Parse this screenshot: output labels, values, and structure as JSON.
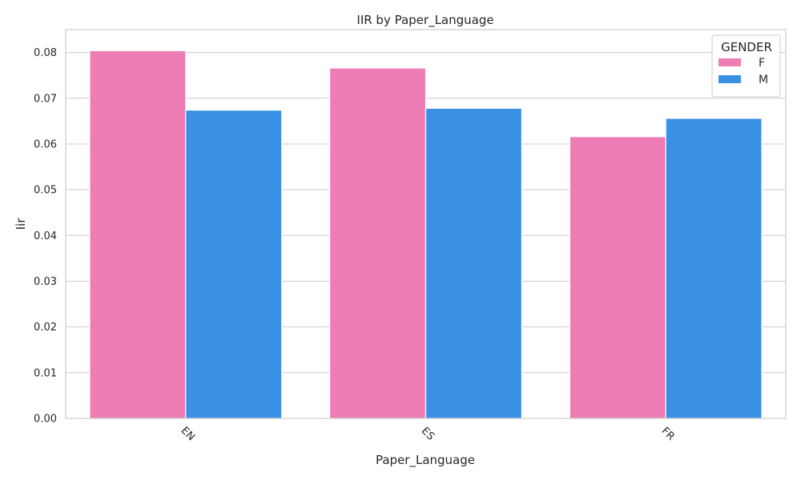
{
  "chart_data": {
    "type": "bar",
    "title": "IIR by Paper_Language",
    "xlabel": "Paper_Language",
    "ylabel": "Iir",
    "categories": [
      "EN",
      "ES",
      "FR"
    ],
    "series": [
      {
        "name": "F",
        "color": "#ed7db4",
        "values": [
          0.0804,
          0.0766,
          0.0616
        ]
      },
      {
        "name": "M",
        "color": "#3a90e5",
        "values": [
          0.0674,
          0.0678,
          0.0656
        ]
      }
    ],
    "ylim": [
      0,
      0.085
    ],
    "yticks": [
      0.0,
      0.01,
      0.02,
      0.03,
      0.04,
      0.05,
      0.06,
      0.07,
      0.08
    ],
    "ytick_labels": [
      "0.00",
      "0.01",
      "0.02",
      "0.03",
      "0.04",
      "0.05",
      "0.06",
      "0.07",
      "0.08"
    ],
    "legend": {
      "title": "GENDER",
      "position": "top-right"
    },
    "grid": "horizontal",
    "xtick_rotation": "45deg"
  }
}
